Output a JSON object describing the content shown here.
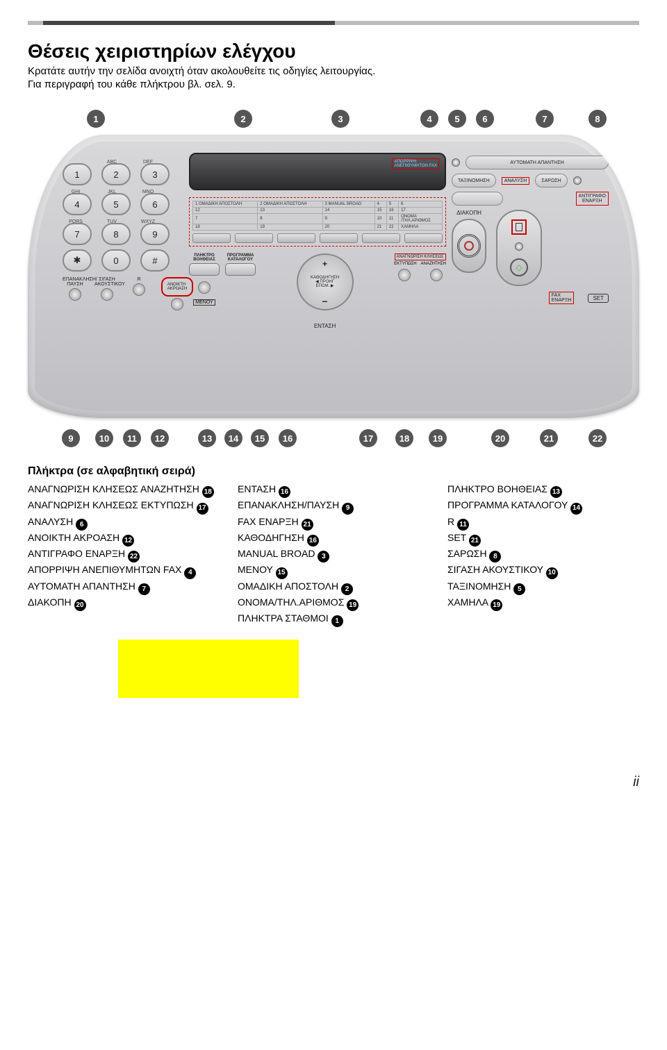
{
  "header": {
    "title": "Θέσεις χειριστηρίων ελέγχου",
    "line1": "Κρατάτε αυτήν την σελίδα ανοιχτή όταν ακολουθείτε τις οδηγίες λειτουργίας.",
    "line2": "Για περιγραφή του κάθε πλήκτρου βλ. σελ. 9."
  },
  "top_numbers": [
    "1",
    "2",
    "3",
    "4",
    "5",
    "6",
    "7",
    "8"
  ],
  "bottom_numbers": [
    "9",
    "10",
    "11",
    "12",
    "13",
    "14",
    "15",
    "16",
    "17",
    "18",
    "19",
    "20",
    "21",
    "22"
  ],
  "keypad": {
    "sub": [
      [
        "",
        "ABC",
        "DEF"
      ],
      [
        "GHI",
        "JKL",
        "MNO"
      ],
      [
        "PQRS",
        "TUV",
        "WXYZ"
      ]
    ],
    "rows": [
      [
        "1",
        "2",
        "3"
      ],
      [
        "4",
        "5",
        "6"
      ],
      [
        "7",
        "8",
        "9"
      ],
      [
        "✱",
        "0",
        "#"
      ]
    ],
    "bottom_labels": [
      "ΕΠΑΝΑΚΛΗΣΗ/\nΠΑΥΣΗ",
      "ΣΙΓΑΣΗ\nΑΚΟΥΣΤΙΚΟΥ",
      "R"
    ],
    "sp_button": "ΑΝΟΙΚΤΗ\nΑΚΡΟΑΣΗ"
  },
  "center": {
    "lcd_label": "ΑΠΟΡΡΙΨΗ\nΑΝΕΠΙΘΥΜΗΤΩΝ FAX",
    "station_rows": [
      [
        "1 ΟΜΑΔΙΚΗ ΑΠΟΣΤΟΛΗ",
        "2 ΟΜΑΔΙΚΗ ΑΠΟΣΤΟΛΗ",
        "3 MANUAL BROAD",
        "4",
        "5",
        "6"
      ],
      [
        "12",
        "13",
        "14",
        "15",
        "16",
        "17"
      ],
      [
        "7",
        "8",
        "9",
        "10",
        "11",
        "ΟΝΟΜΑ\n/ΤΗΛ.ΑΡΙΘΜΟΣ"
      ],
      [
        "18",
        "19",
        "20",
        "21",
        "22",
        "ΧΑΜΗΛΑ"
      ]
    ],
    "help": "ΠΛΗΚΤΡΟ\nΒΟΗΘΕΙΑΣ",
    "prog": "ΠΡΟΓΡΑΜΜΑ\nΚΑΤΑΛΟΓΟΥ",
    "nav_mid": "ΚΑΘΟΔΗΓΗΣΗ\n◀ ΠΡΟΗΓ   ΕΠΟΜ. ▶",
    "menu": "ΜΕΝΟΥ",
    "volume": "ΕΝΤΑΣΗ",
    "print_box": "ΑΝΑΓΝΩΡΙΣΗ ΚΛΗΣΕΩΣ",
    "print_l": "ΕΚΤΥΠΩΣΗ",
    "print_r": "ΑΝΑΖΗΤΗΣΗ"
  },
  "right": {
    "auto_answer": "ΑΥΤΟΜΑΤΗ ΑΠΑΝΤΗΣΗ",
    "sort": "ΤΑΞΙΝΟΜΗΣΗ",
    "resolution": "ΑΝΑΛΥΣΗ",
    "scan": "ΣΑΡΩΣΗ",
    "copy_start": "ΑΝΤΙΓΡΑΦΟ\nΕΝΑΡΞΗ",
    "stop": "ΔΙΑΚΟΠΗ",
    "fax_start": "FAX\nΕΝΑΡΞΗ",
    "set": "SET"
  },
  "list_title": "Πλήκτρα (σε αλφαβητική σειρά)",
  "columns": [
    [
      {
        "t": "ΑΝΑΓΝΩΡΙΣΗ ΚΛΗΣΕΩΣ ΑΝΑΖΗΤΗΣΗ",
        "n": "18"
      },
      {
        "t": "ΑΝΑΓΝΩΡΙΣΗ ΚΛΗΣΕΩΣ ΕΚΤΥΠΩΣΗ",
        "n": "17"
      },
      {
        "t": "ΑΝΑΛΥΣΗ",
        "n": "6"
      },
      {
        "t": "ΑΝΟΙΚΤΗ ΑΚΡΟΑΣΗ",
        "n": "12"
      },
      {
        "t": "ΑΝΤΙΓΡΑΦΟ ΕΝΑΡΞΗ",
        "n": "22"
      },
      {
        "t": "ΑΠΟΡΡΙΨΗ ΑΝΕΠΙΘΥΜΗΤΩΝ FAX",
        "n": "4"
      },
      {
        "t": "ΑΥΤΟΜΑΤΗ ΑΠΑΝΤΗΣΗ",
        "n": "7"
      },
      {
        "t": "ΔΙΑΚΟΠΗ",
        "n": "20"
      }
    ],
    [
      {
        "t": "ΕΝΤΑΣΗ",
        "n": "16"
      },
      {
        "t": "ΕΠΑΝΑΚΛΗΣΗ/ΠΑΥΣΗ",
        "n": "9"
      },
      {
        "t": "FAX ΕΝΑΡΞΗ",
        "n": "21"
      },
      {
        "t": "ΚΑΘΟΔΗΓΗΣΗ",
        "n": "16"
      },
      {
        "t": "MANUAL BROAD",
        "n": "3"
      },
      {
        "t": "ΜΕΝΟΥ",
        "n": "15"
      },
      {
        "t": "ΟΜΑΔΙΚΗ ΑΠΟΣΤΟΛΗ",
        "n": "2"
      },
      {
        "t": "ΟΝΟΜΑ/ΤΗΛ.ΑΡΙΘΜΟΣ",
        "n": "19"
      },
      {
        "t": "ΠΛΗΚΤΡΑ ΣΤΑΘΜΟΙ",
        "n": "1"
      }
    ],
    [
      {
        "t": "ΠΛΗΚΤΡΟ ΒΟΗΘΕΙΑΣ",
        "n": "13"
      },
      {
        "t": "ΠΡΟΓΡΑΜΜΑ ΚΑΤΑΛΟΓΟΥ",
        "n": "14"
      },
      {
        "t": "R",
        "n": "11"
      },
      {
        "t": "SET",
        "n": "21"
      },
      {
        "t": "ΣΑΡΩΣΗ",
        "n": "8"
      },
      {
        "t": "ΣΙΓΑΣΗ ΑΚΟΥΣΤΙΚΟΥ",
        "n": "10"
      },
      {
        "t": "ΤΑΞΙΝΟΜΗΣΗ",
        "n": "5"
      },
      {
        "t": "ΧΑΜΗΛΑ",
        "n": "19"
      }
    ]
  ],
  "page_number": "ii",
  "top_positions": [
    98,
    310,
    450,
    578,
    618,
    658,
    744,
    820
  ],
  "bottom_positions": [
    62,
    110,
    150,
    190,
    258,
    296,
    334,
    374,
    490,
    542,
    590,
    680,
    750,
    820
  ]
}
